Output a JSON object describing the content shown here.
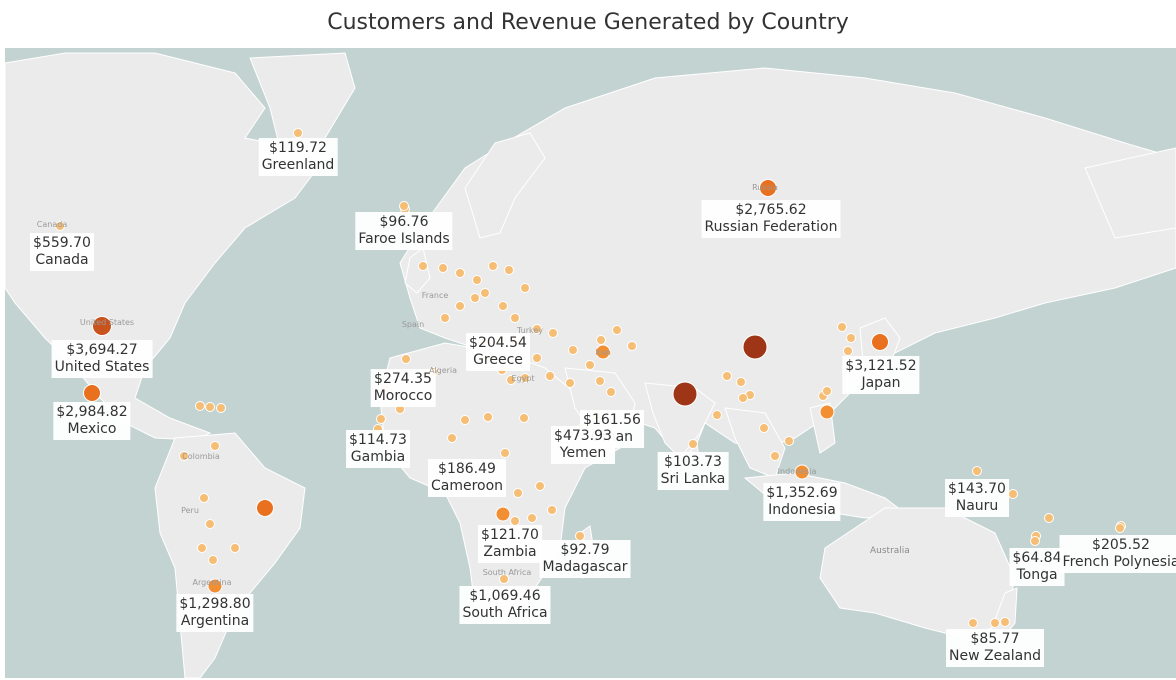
{
  "title": "Customers and Revenue Generated by Country",
  "colors": {
    "ocean": "#c3d3d2",
    "land": "#ebebeb",
    "border": "#ffffff",
    "dot_small": "#f6bd74",
    "dot_mid": "#f28f33",
    "dot_large": "#e8701f",
    "dot_xl": "#c8531d",
    "dot_max": "#9e3517"
  },
  "basemap": {
    "ocean_label": "Australia",
    "mini_labels": [
      "Canada",
      "United States",
      "France",
      "Spain",
      "Turkey",
      "Egypt",
      "Algeria",
      "Iran",
      "Colombia",
      "Peru",
      "Argentina",
      "South Africa",
      "Russia",
      "Indonesia"
    ]
  },
  "markers": [
    {
      "country": "Greenland",
      "revenue": "$119.72",
      "tier": "small"
    },
    {
      "country": "Canada",
      "revenue": "$559.70",
      "tier": "small"
    },
    {
      "country": "United States",
      "revenue": "$3,694.27",
      "tier": "xl"
    },
    {
      "country": "Mexico",
      "revenue": "$2,984.82",
      "tier": "large"
    },
    {
      "country": "Faroe Islands",
      "revenue": "$96.76",
      "tier": "small"
    },
    {
      "country": "Russian Federation",
      "revenue": "$2,765.62",
      "tier": "large"
    },
    {
      "country": "Greece",
      "revenue": "$204.54",
      "tier": "small"
    },
    {
      "country": "Morocco",
      "revenue": "$274.35",
      "tier": "small"
    },
    {
      "country": "Gambia",
      "revenue": "$114.73",
      "tier": "small"
    },
    {
      "country": "Cameroon",
      "revenue": "$186.49",
      "tier": "small"
    },
    {
      "country": "Oman",
      "revenue": "$161.56",
      "tier": "small"
    },
    {
      "country": "Yemen",
      "revenue": "$473.93",
      "tier": "small"
    },
    {
      "country": "Sri Lanka",
      "revenue": "$103.73",
      "tier": "small"
    },
    {
      "country": "Japan",
      "revenue": "$3,121.52",
      "tier": "large"
    },
    {
      "country": "Indonesia",
      "revenue": "$1,352.69",
      "tier": "mid"
    },
    {
      "country": "Nauru",
      "revenue": "$143.70",
      "tier": "small"
    },
    {
      "country": "Tonga",
      "revenue": "$64.84",
      "tier": "small"
    },
    {
      "country": "French Polynesia",
      "revenue": "$205.52",
      "tier": "small"
    },
    {
      "country": "New Zealand",
      "revenue": "$85.77",
      "tier": "small"
    },
    {
      "country": "Zambia",
      "revenue": "$121.70",
      "tier": "small"
    },
    {
      "country": "Madagascar",
      "revenue": "$92.79",
      "tier": "small"
    },
    {
      "country": "South Africa",
      "revenue": "$1,069.46",
      "tier": "small"
    },
    {
      "country": "Argentina",
      "revenue": "$1,298.80",
      "tier": "mid"
    }
  ],
  "unlabeled_dot_tiers": [
    "max",
    "max",
    "large",
    "mid",
    "mid",
    "mid"
  ]
}
